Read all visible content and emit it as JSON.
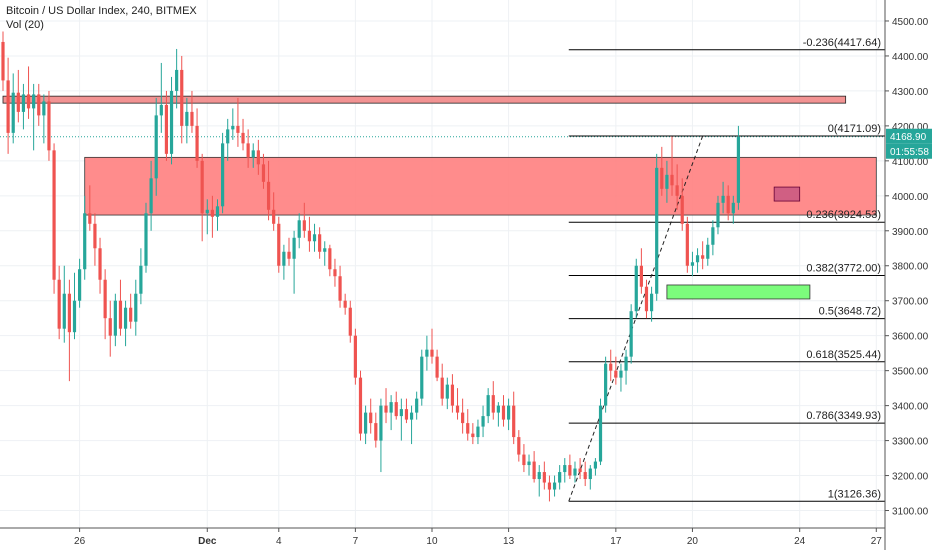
{
  "header": {
    "title": "Bitcoin / US Dollar Index, 240, BITMEX",
    "volume_label": "Vol (20)"
  },
  "price_badges": {
    "last_price": "4168.90",
    "countdown": "01:55:58"
  },
  "colors": {
    "up": "#26a69a",
    "down": "#ef5350",
    "resistance_zone": "#ff8080",
    "upper_resistance_line": "#f08080",
    "support_box": "#7cfc7c",
    "fib_line": "#000000",
    "price_badge": "#26a69a",
    "current_price_line": "#26a69a",
    "marker_box": "#c05080"
  },
  "chart_data": {
    "type": "candlestick",
    "symbol": "BTC/USD",
    "timeframe": "240",
    "exchange": "BITMEX",
    "ylim": [
      3050,
      4560
    ],
    "yticks": [
      3100,
      3200,
      3300,
      3400,
      3500,
      3600,
      3700,
      3800,
      3900,
      4000,
      4100,
      4200,
      4300,
      4400,
      4500
    ],
    "xticks": [
      {
        "label": "26",
        "bar": 15
      },
      {
        "label": "Dec",
        "bar": 40
      },
      {
        "label": "4",
        "bar": 54
      },
      {
        "label": "7",
        "bar": 69
      },
      {
        "label": "10",
        "bar": 84
      },
      {
        "label": "13",
        "bar": 99
      },
      {
        "label": "17",
        "bar": 120
      },
      {
        "label": "20",
        "bar": 135
      },
      {
        "label": "24",
        "bar": 156
      },
      {
        "label": "27",
        "bar": 171
      }
    ],
    "last_price": 4168.9,
    "fibonacci": {
      "from_bar": 110,
      "to_bar": 170,
      "trend_from_price": 3126.36,
      "trend_to_price": 4171.09,
      "levels": [
        {
          "ratio": "-0.236",
          "price": 4417.64
        },
        {
          "ratio": "0",
          "price": 4171.09
        },
        {
          "ratio": "0.236",
          "price": 3924.53
        },
        {
          "ratio": "0.382",
          "price": 3772.0
        },
        {
          "ratio": "0.5",
          "price": 3648.72
        },
        {
          "ratio": "0.618",
          "price": 3525.44
        },
        {
          "ratio": "0.786",
          "price": 3349.93
        },
        {
          "ratio": "1",
          "price": 3126.36
        }
      ]
    },
    "zones": [
      {
        "name": "upper-resistance",
        "from_bar": 0,
        "to_bar": 165,
        "top": 4285,
        "bottom": 4265
      },
      {
        "name": "resistance-zone",
        "from_bar": 16,
        "to_bar": 171,
        "top": 4110,
        "bottom": 3945
      },
      {
        "name": "support-box",
        "from_bar": 130,
        "to_bar": 158,
        "top": 3745,
        "bottom": 3705
      },
      {
        "name": "marker-box",
        "from_bar": 151,
        "to_bar": 156,
        "top": 4025,
        "bottom": 3985
      }
    ],
    "candles": [
      {
        "o": 4440,
        "h": 4470,
        "l": 4300,
        "c": 4330
      },
      {
        "o": 4330,
        "h": 4395,
        "l": 4120,
        "c": 4180
      },
      {
        "o": 4180,
        "h": 4350,
        "l": 4150,
        "c": 4295
      },
      {
        "o": 4295,
        "h": 4360,
        "l": 4210,
        "c": 4240
      },
      {
        "o": 4240,
        "h": 4320,
        "l": 4190,
        "c": 4290
      },
      {
        "o": 4290,
        "h": 4370,
        "l": 4220,
        "c": 4250
      },
      {
        "o": 4250,
        "h": 4320,
        "l": 4130,
        "c": 4290
      },
      {
        "o": 4290,
        "h": 4320,
        "l": 4200,
        "c": 4230
      },
      {
        "o": 4230,
        "h": 4290,
        "l": 4150,
        "c": 4270
      },
      {
        "o": 4270,
        "h": 4300,
        "l": 4100,
        "c": 4130
      },
      {
        "o": 4130,
        "h": 4150,
        "l": 3720,
        "c": 3760
      },
      {
        "o": 3760,
        "h": 3800,
        "l": 3590,
        "c": 3620
      },
      {
        "o": 3620,
        "h": 3800,
        "l": 3580,
        "c": 3720
      },
      {
        "o": 3720,
        "h": 3760,
        "l": 3470,
        "c": 3610
      },
      {
        "o": 3610,
        "h": 3780,
        "l": 3590,
        "c": 3700
      },
      {
        "o": 3700,
        "h": 3820,
        "l": 3680,
        "c": 3790
      },
      {
        "o": 3790,
        "h": 4000,
        "l": 3760,
        "c": 3950
      },
      {
        "o": 3950,
        "h": 4030,
        "l": 3900,
        "c": 3920
      },
      {
        "o": 3920,
        "h": 3950,
        "l": 3800,
        "c": 3850
      },
      {
        "o": 3850,
        "h": 3880,
        "l": 3720,
        "c": 3760
      },
      {
        "o": 3760,
        "h": 3790,
        "l": 3590,
        "c": 3650
      },
      {
        "o": 3650,
        "h": 3700,
        "l": 3540,
        "c": 3600
      },
      {
        "o": 3600,
        "h": 3720,
        "l": 3570,
        "c": 3700
      },
      {
        "o": 3700,
        "h": 3760,
        "l": 3600,
        "c": 3620
      },
      {
        "o": 3620,
        "h": 3700,
        "l": 3570,
        "c": 3680
      },
      {
        "o": 3680,
        "h": 3720,
        "l": 3620,
        "c": 3640
      },
      {
        "o": 3640,
        "h": 3760,
        "l": 3600,
        "c": 3720
      },
      {
        "o": 3720,
        "h": 3850,
        "l": 3690,
        "c": 3800
      },
      {
        "o": 3800,
        "h": 3980,
        "l": 3780,
        "c": 3950
      },
      {
        "o": 3950,
        "h": 4100,
        "l": 3900,
        "c": 4050
      },
      {
        "o": 4050,
        "h": 4280,
        "l": 4000,
        "c": 4230
      },
      {
        "o": 4230,
        "h": 4380,
        "l": 4180,
        "c": 4260
      },
      {
        "o": 4260,
        "h": 4300,
        "l": 4100,
        "c": 4120
      },
      {
        "o": 4120,
        "h": 4340,
        "l": 4090,
        "c": 4300
      },
      {
        "o": 4300,
        "h": 4420,
        "l": 4250,
        "c": 4360
      },
      {
        "o": 4360,
        "h": 4400,
        "l": 4150,
        "c": 4200
      },
      {
        "o": 4200,
        "h": 4280,
        "l": 4150,
        "c": 4240
      },
      {
        "o": 4240,
        "h": 4300,
        "l": 4180,
        "c": 4200
      },
      {
        "o": 4200,
        "h": 4250,
        "l": 4080,
        "c": 4100
      },
      {
        "o": 4100,
        "h": 4120,
        "l": 3870,
        "c": 3950
      },
      {
        "o": 3950,
        "h": 3990,
        "l": 3890,
        "c": 3960
      },
      {
        "o": 3960,
        "h": 4000,
        "l": 3880,
        "c": 3940
      },
      {
        "o": 3940,
        "h": 3990,
        "l": 3900,
        "c": 3970
      },
      {
        "o": 3970,
        "h": 4180,
        "l": 3950,
        "c": 4150
      },
      {
        "o": 4150,
        "h": 4220,
        "l": 4100,
        "c": 4190
      },
      {
        "o": 4190,
        "h": 4250,
        "l": 4160,
        "c": 4200
      },
      {
        "o": 4200,
        "h": 4280,
        "l": 4140,
        "c": 4180
      },
      {
        "o": 4180,
        "h": 4220,
        "l": 4130,
        "c": 4150
      },
      {
        "o": 4150,
        "h": 4190,
        "l": 4080,
        "c": 4110
      },
      {
        "o": 4110,
        "h": 4150,
        "l": 4080,
        "c": 4130
      },
      {
        "o": 4130,
        "h": 4160,
        "l": 4060,
        "c": 4090
      },
      {
        "o": 4090,
        "h": 4120,
        "l": 4020,
        "c": 4040
      },
      {
        "o": 4040,
        "h": 4100,
        "l": 3930,
        "c": 3960
      },
      {
        "o": 3960,
        "h": 4010,
        "l": 3900,
        "c": 3920
      },
      {
        "o": 3920,
        "h": 3940,
        "l": 3780,
        "c": 3800
      },
      {
        "o": 3800,
        "h": 3860,
        "l": 3760,
        "c": 3840
      },
      {
        "o": 3840,
        "h": 3880,
        "l": 3800,
        "c": 3820
      },
      {
        "o": 3820,
        "h": 3900,
        "l": 3720,
        "c": 3880
      },
      {
        "o": 3880,
        "h": 3950,
        "l": 3850,
        "c": 3930
      },
      {
        "o": 3930,
        "h": 3980,
        "l": 3880,
        "c": 3900
      },
      {
        "o": 3900,
        "h": 3940,
        "l": 3840,
        "c": 3870
      },
      {
        "o": 3870,
        "h": 3920,
        "l": 3840,
        "c": 3890
      },
      {
        "o": 3890,
        "h": 3910,
        "l": 3820,
        "c": 3840
      },
      {
        "o": 3840,
        "h": 3870,
        "l": 3800,
        "c": 3850
      },
      {
        "o": 3850,
        "h": 3860,
        "l": 3770,
        "c": 3790
      },
      {
        "o": 3790,
        "h": 3820,
        "l": 3740,
        "c": 3770
      },
      {
        "o": 3770,
        "h": 3800,
        "l": 3680,
        "c": 3700
      },
      {
        "o": 3700,
        "h": 3720,
        "l": 3660,
        "c": 3680
      },
      {
        "o": 3680,
        "h": 3700,
        "l": 3580,
        "c": 3600
      },
      {
        "o": 3600,
        "h": 3620,
        "l": 3460,
        "c": 3480
      },
      {
        "o": 3480,
        "h": 3500,
        "l": 3300,
        "c": 3320
      },
      {
        "o": 3320,
        "h": 3400,
        "l": 3290,
        "c": 3380
      },
      {
        "o": 3380,
        "h": 3420,
        "l": 3320,
        "c": 3350
      },
      {
        "o": 3350,
        "h": 3380,
        "l": 3280,
        "c": 3300
      },
      {
        "o": 3300,
        "h": 3420,
        "l": 3210,
        "c": 3400
      },
      {
        "o": 3400,
        "h": 3450,
        "l": 3350,
        "c": 3380
      },
      {
        "o": 3380,
        "h": 3430,
        "l": 3330,
        "c": 3410
      },
      {
        "o": 3410,
        "h": 3440,
        "l": 3360,
        "c": 3370
      },
      {
        "o": 3370,
        "h": 3420,
        "l": 3300,
        "c": 3390
      },
      {
        "o": 3390,
        "h": 3420,
        "l": 3350,
        "c": 3360
      },
      {
        "o": 3360,
        "h": 3400,
        "l": 3290,
        "c": 3380
      },
      {
        "o": 3380,
        "h": 3440,
        "l": 3360,
        "c": 3420
      },
      {
        "o": 3420,
        "h": 3560,
        "l": 3400,
        "c": 3540
      },
      {
        "o": 3540,
        "h": 3600,
        "l": 3500,
        "c": 3560
      },
      {
        "o": 3560,
        "h": 3620,
        "l": 3520,
        "c": 3540
      },
      {
        "o": 3540,
        "h": 3560,
        "l": 3470,
        "c": 3480
      },
      {
        "o": 3480,
        "h": 3520,
        "l": 3400,
        "c": 3420
      },
      {
        "o": 3420,
        "h": 3480,
        "l": 3390,
        "c": 3460
      },
      {
        "o": 3460,
        "h": 3490,
        "l": 3380,
        "c": 3400
      },
      {
        "o": 3400,
        "h": 3450,
        "l": 3360,
        "c": 3380
      },
      {
        "o": 3380,
        "h": 3420,
        "l": 3320,
        "c": 3350
      },
      {
        "o": 3350,
        "h": 3390,
        "l": 3300,
        "c": 3320
      },
      {
        "o": 3320,
        "h": 3350,
        "l": 3290,
        "c": 3310
      },
      {
        "o": 3310,
        "h": 3360,
        "l": 3290,
        "c": 3340
      },
      {
        "o": 3340,
        "h": 3400,
        "l": 3310,
        "c": 3370
      },
      {
        "o": 3370,
        "h": 3450,
        "l": 3350,
        "c": 3430
      },
      {
        "o": 3430,
        "h": 3470,
        "l": 3360,
        "c": 3380
      },
      {
        "o": 3380,
        "h": 3410,
        "l": 3340,
        "c": 3400
      },
      {
        "o": 3400,
        "h": 3430,
        "l": 3340,
        "c": 3360
      },
      {
        "o": 3360,
        "h": 3420,
        "l": 3330,
        "c": 3400
      },
      {
        "o": 3400,
        "h": 3440,
        "l": 3290,
        "c": 3310
      },
      {
        "o": 3310,
        "h": 3330,
        "l": 3240,
        "c": 3260
      },
      {
        "o": 3260,
        "h": 3290,
        "l": 3210,
        "c": 3230
      },
      {
        "o": 3230,
        "h": 3260,
        "l": 3200,
        "c": 3240
      },
      {
        "o": 3240,
        "h": 3270,
        "l": 3180,
        "c": 3190
      },
      {
        "o": 3190,
        "h": 3230,
        "l": 3140,
        "c": 3210
      },
      {
        "o": 3210,
        "h": 3240,
        "l": 3160,
        "c": 3180
      },
      {
        "o": 3180,
        "h": 3200,
        "l": 3126,
        "c": 3160
      },
      {
        "o": 3160,
        "h": 3200,
        "l": 3140,
        "c": 3180
      },
      {
        "o": 3180,
        "h": 3230,
        "l": 3160,
        "c": 3210
      },
      {
        "o": 3210,
        "h": 3250,
        "l": 3180,
        "c": 3230
      },
      {
        "o": 3230,
        "h": 3260,
        "l": 3190,
        "c": 3200
      },
      {
        "o": 3200,
        "h": 3240,
        "l": 3180,
        "c": 3220
      },
      {
        "o": 3220,
        "h": 3250,
        "l": 3190,
        "c": 3210
      },
      {
        "o": 3210,
        "h": 3240,
        "l": 3170,
        "c": 3190
      },
      {
        "o": 3190,
        "h": 3230,
        "l": 3160,
        "c": 3220
      },
      {
        "o": 3220,
        "h": 3250,
        "l": 3200,
        "c": 3240
      },
      {
        "o": 3240,
        "h": 3420,
        "l": 3230,
        "c": 3400
      },
      {
        "o": 3400,
        "h": 3540,
        "l": 3380,
        "c": 3520
      },
      {
        "o": 3520,
        "h": 3560,
        "l": 3470,
        "c": 3500
      },
      {
        "o": 3500,
        "h": 3540,
        "l": 3460,
        "c": 3480
      },
      {
        "o": 3480,
        "h": 3520,
        "l": 3440,
        "c": 3500
      },
      {
        "o": 3500,
        "h": 3560,
        "l": 3460,
        "c": 3540
      },
      {
        "o": 3540,
        "h": 3690,
        "l": 3520,
        "c": 3670
      },
      {
        "o": 3670,
        "h": 3820,
        "l": 3650,
        "c": 3800
      },
      {
        "o": 3800,
        "h": 3850,
        "l": 3720,
        "c": 3740
      },
      {
        "o": 3740,
        "h": 3760,
        "l": 3650,
        "c": 3670
      },
      {
        "o": 3670,
        "h": 3740,
        "l": 3640,
        "c": 3720
      },
      {
        "o": 3720,
        "h": 4120,
        "l": 3700,
        "c": 4080
      },
      {
        "o": 4080,
        "h": 4140,
        "l": 4000,
        "c": 4020
      },
      {
        "o": 4020,
        "h": 4100,
        "l": 3980,
        "c": 4060
      },
      {
        "o": 4060,
        "h": 4170,
        "l": 4000,
        "c": 4030
      },
      {
        "o": 4030,
        "h": 4090,
        "l": 3960,
        "c": 4000
      },
      {
        "o": 4000,
        "h": 4050,
        "l": 3900,
        "c": 3920
      },
      {
        "o": 3920,
        "h": 3940,
        "l": 3780,
        "c": 3800
      },
      {
        "o": 3800,
        "h": 3840,
        "l": 3770,
        "c": 3810
      },
      {
        "o": 3810,
        "h": 3850,
        "l": 3780,
        "c": 3830
      },
      {
        "o": 3830,
        "h": 3870,
        "l": 3790,
        "c": 3820
      },
      {
        "o": 3820,
        "h": 3880,
        "l": 3800,
        "c": 3860
      },
      {
        "o": 3860,
        "h": 3930,
        "l": 3830,
        "c": 3910
      },
      {
        "o": 3910,
        "h": 4000,
        "l": 3890,
        "c": 3980
      },
      {
        "o": 3980,
        "h": 4040,
        "l": 3950,
        "c": 4000
      },
      {
        "o": 4000,
        "h": 4030,
        "l": 3930,
        "c": 3950
      },
      {
        "o": 3950,
        "h": 4000,
        "l": 3920,
        "c": 3980
      },
      {
        "o": 3980,
        "h": 4200,
        "l": 3960,
        "c": 4168.9
      }
    ]
  }
}
